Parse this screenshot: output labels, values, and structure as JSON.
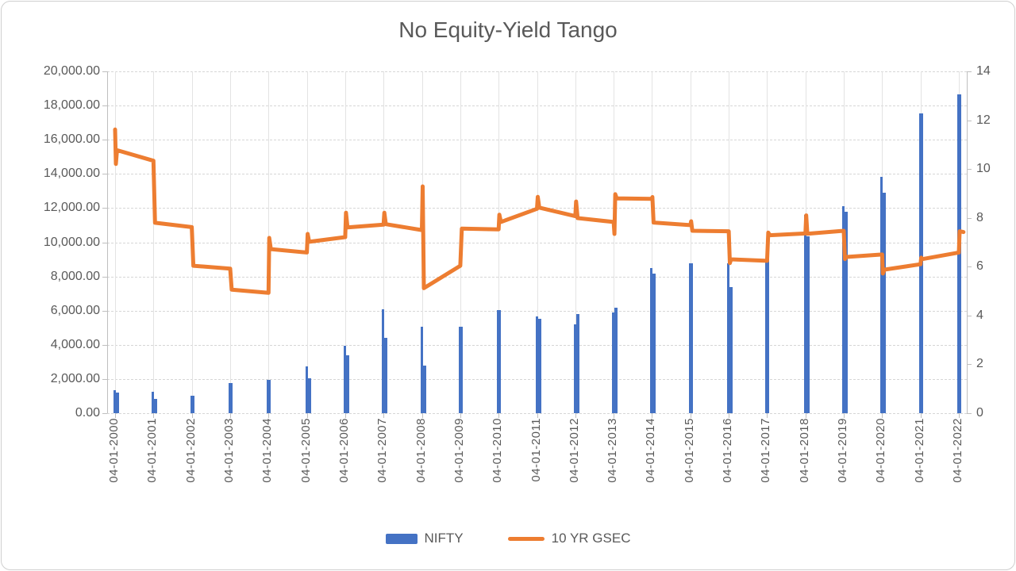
{
  "title": "No Equity-Yield Tango",
  "colors": {
    "nifty_blue": "#4472C4",
    "gsec_orange": "#ED7D31",
    "text_gray": "#595959",
    "gridline_gray": "#D9D9D9"
  },
  "legend": {
    "items": [
      {
        "label": "NIFTY",
        "type": "bar",
        "color": "#4472C4"
      },
      {
        "label": "10 YR GSEC",
        "type": "line",
        "color": "#ED7D31"
      }
    ]
  },
  "left_axis": {
    "min": 0,
    "max": 20000,
    "step": 2000,
    "labels": [
      "20,000.00",
      "18,000.00",
      "16,000.00",
      "14,000.00",
      "12,000.00",
      "10,000.00",
      "8,000.00",
      "6,000.00",
      "4,000.00",
      "2,000.00",
      "0.00"
    ]
  },
  "right_axis": {
    "min": 0,
    "max": 14,
    "step": 2,
    "labels": [
      "14",
      "12",
      "10",
      "8",
      "6",
      "4",
      "2",
      "0"
    ]
  },
  "x_axis": {
    "labels": [
      "04-01-2000",
      "04-01-2001",
      "04-01-2002",
      "04-01-2003",
      "04-01-2004",
      "04-01-2005",
      "04-01-2006",
      "04-01-2007",
      "04-01-2008",
      "04-01-2009",
      "04-01-2010",
      "04-01-2011",
      "04-01-2012",
      "04-01-2013",
      "04-01-2014",
      "04-01-2015",
      "04-01-2016",
      "04-01-2017",
      "04-01-2018",
      "04-01-2019",
      "04-01-2020",
      "04-01-2021",
      "04-01-2022"
    ]
  },
  "chart_data": {
    "type": "combo",
    "title": "No Equity-Yield Tango",
    "grid": true,
    "legend_position": "bottom",
    "series": [
      {
        "name": "NIFTY",
        "type": "bar",
        "axis": "left",
        "color": "#4472C4",
        "ylim": [
          0,
          20000
        ],
        "note": "thin bar clusters at yearly 04-01 dates; values approximate, read from pixels",
        "data": [
          {
            "year": 2000,
            "values": [
              1350,
              1200
            ]
          },
          {
            "year": 2001,
            "values": [
              1250,
              850
            ]
          },
          {
            "year": 2002,
            "values": [
              1000
            ]
          },
          {
            "year": 2003,
            "values": [
              1750
            ]
          },
          {
            "year": 2004,
            "values": [
              1950
            ]
          },
          {
            "year": 2005,
            "values": [
              2750,
              2050
            ]
          },
          {
            "year": 2006,
            "values": [
              3950,
              3400
            ]
          },
          {
            "year": 2007,
            "values": [
              6100,
              4400
            ]
          },
          {
            "year": 2008,
            "values": [
              5050,
              2800
            ]
          },
          {
            "year": 2009,
            "values": [
              5050
            ]
          },
          {
            "year": 2010,
            "values": [
              6050
            ]
          },
          {
            "year": 2011,
            "values": [
              5650,
              5500
            ]
          },
          {
            "year": 2012,
            "values": [
              5200,
              5800
            ]
          },
          {
            "year": 2013,
            "values": [
              5900,
              6150
            ]
          },
          {
            "year": 2014,
            "values": [
              8500,
              8150
            ]
          },
          {
            "year": 2015,
            "values": [
              8750
            ]
          },
          {
            "year": 2016,
            "values": [
              8750,
              7400
            ]
          },
          {
            "year": 2017,
            "values": [
              9000
            ]
          },
          {
            "year": 2018,
            "values": [
              11600,
              10350
            ]
          },
          {
            "year": 2019,
            "values": [
              12100,
              11800
            ]
          },
          {
            "year": 2020,
            "values": [
              13850,
              12900
            ]
          },
          {
            "year": 2021,
            "values": [
              17550
            ]
          },
          {
            "year": 2022,
            "values": [
              18650
            ]
          }
        ]
      },
      {
        "name": "10 YR GSEC",
        "type": "line",
        "axis": "right",
        "color": "#ED7D31",
        "ylim": [
          0,
          14
        ],
        "points": [
          [
            2000.0,
            11.62
          ],
          [
            2000.02,
            10.21
          ],
          [
            2000.05,
            10.77
          ],
          [
            2001.0,
            10.34
          ],
          [
            2001.04,
            7.8
          ],
          [
            2002.0,
            7.62
          ],
          [
            2002.04,
            6.04
          ],
          [
            2003.0,
            5.92
          ],
          [
            2003.04,
            5.06
          ],
          [
            2004.0,
            4.93
          ],
          [
            2004.02,
            7.18
          ],
          [
            2004.06,
            6.72
          ],
          [
            2005.0,
            6.58
          ],
          [
            2005.02,
            7.34
          ],
          [
            2005.06,
            7.02
          ],
          [
            2006.0,
            7.21
          ],
          [
            2006.02,
            8.21
          ],
          [
            2006.06,
            7.61
          ],
          [
            2007.0,
            7.72
          ],
          [
            2007.02,
            8.21
          ],
          [
            2007.06,
            7.74
          ],
          [
            2008.0,
            7.5
          ],
          [
            2008.02,
            9.29
          ],
          [
            2008.05,
            5.12
          ],
          [
            2009.0,
            6.04
          ],
          [
            2009.04,
            7.56
          ],
          [
            2010.0,
            7.53
          ],
          [
            2010.02,
            8.13
          ],
          [
            2010.06,
            7.83
          ],
          [
            2011.0,
            8.37
          ],
          [
            2011.02,
            8.86
          ],
          [
            2011.06,
            8.42
          ],
          [
            2012.0,
            8.07
          ],
          [
            2012.02,
            8.67
          ],
          [
            2012.06,
            7.99
          ],
          [
            2013.0,
            7.83
          ],
          [
            2013.02,
            7.34
          ],
          [
            2013.04,
            8.97
          ],
          [
            2013.08,
            8.8
          ],
          [
            2014.0,
            8.78
          ],
          [
            2014.01,
            8.85
          ],
          [
            2014.04,
            7.81
          ],
          [
            2015.0,
            7.7
          ],
          [
            2015.02,
            7.86
          ],
          [
            2015.05,
            7.47
          ],
          [
            2016.0,
            7.45
          ],
          [
            2016.03,
            6.15
          ],
          [
            2016.06,
            6.3
          ],
          [
            2017.0,
            6.24
          ],
          [
            2017.03,
            7.4
          ],
          [
            2017.07,
            7.29
          ],
          [
            2018.0,
            7.36
          ],
          [
            2018.02,
            8.1
          ],
          [
            2018.05,
            7.35
          ],
          [
            2019.0,
            7.47
          ],
          [
            2019.03,
            6.31
          ],
          [
            2019.07,
            6.4
          ],
          [
            2020.0,
            6.5
          ],
          [
            2020.02,
            5.72
          ],
          [
            2020.06,
            5.88
          ],
          [
            2021.0,
            6.1
          ],
          [
            2021.02,
            6.37
          ],
          [
            2021.05,
            6.31
          ],
          [
            2022.0,
            6.58
          ],
          [
            2022.02,
            7.45
          ],
          [
            2022.12,
            7.42
          ]
        ]
      }
    ]
  }
}
